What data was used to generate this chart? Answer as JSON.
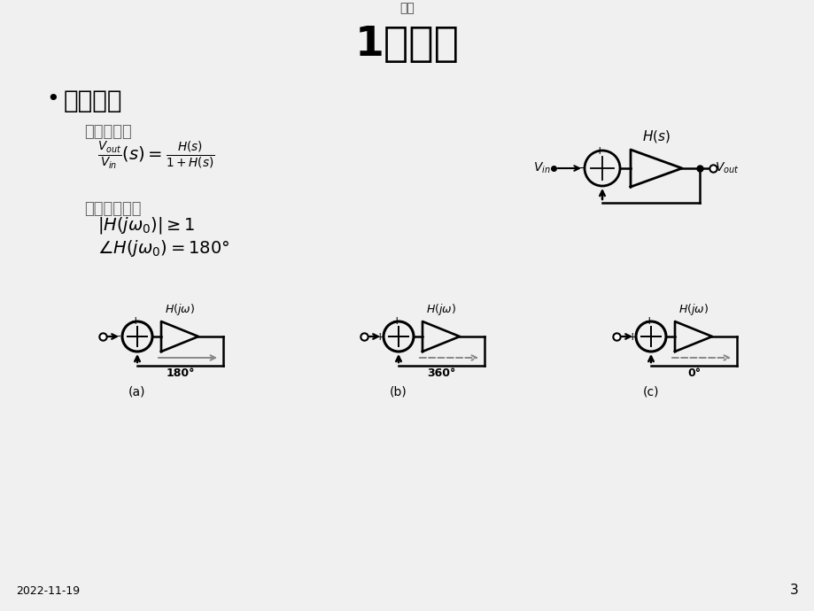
{
  "bg_color": "#f0f0f0",
  "title_top": "概述",
  "title_main": "1、概述",
  "bullet": "振荡条件",
  "section1": "负反馈系统",
  "section2": "巴克豪森准则",
  "date": "2022-11-19",
  "page": "3",
  "diag_labels": [
    "(a)",
    "(b)",
    "(c)"
  ],
  "diag_phases": [
    "180°",
    "360°",
    "0°"
  ],
  "diag_minus": [
    "-",
    "+",
    "+"
  ],
  "title_fontsize": 36,
  "section_color": "#666666"
}
